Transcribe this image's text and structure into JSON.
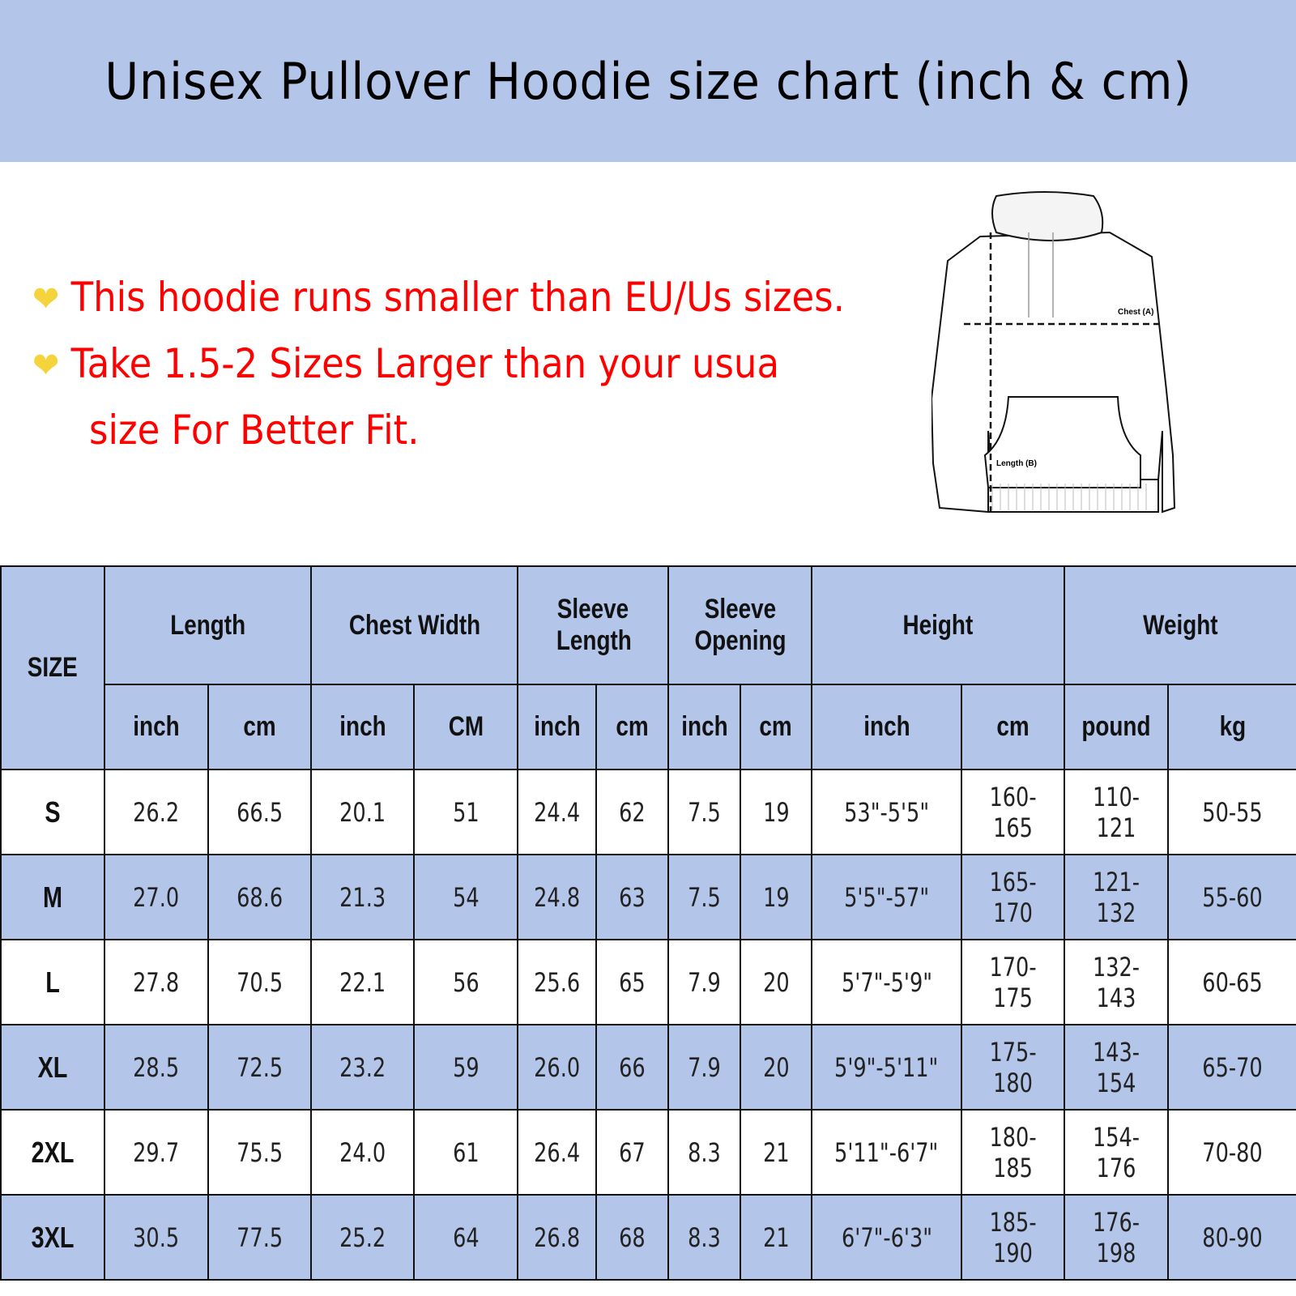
{
  "title": "Unisex Pullover Hoodie size chart (inch & cm)",
  "notes": [
    {
      "icon": "yellow-heart-icon",
      "text": "This hoodie runs smaller than EU/Us sizes."
    },
    {
      "icon": "yellow-heart-icon",
      "text": "Take 1.5-2 Sizes Larger than your usua",
      "continuation": "size For Better Fit."
    }
  ],
  "diagram": {
    "chest_label": "Chest (A)",
    "length_label": "Length (B)"
  },
  "colors": {
    "banner": "#b4c5ea",
    "note_text": "#ff0000",
    "heart": "#f5d33a"
  },
  "table": {
    "size_header": "SIZE",
    "groups": [
      "Length",
      "Chest Width",
      "Sleeve Length",
      "Sleeve Opening",
      "Height",
      "Weight"
    ],
    "units": [
      "inch",
      "cm",
      "inch",
      "CM",
      "inch",
      "cm",
      "inch",
      "cm",
      "inch",
      "cm",
      "pound",
      "kg"
    ],
    "rows": [
      {
        "size": "S",
        "values": [
          "26.2",
          "66.5",
          "20.1",
          "51",
          "24.4",
          "62",
          "7.5",
          "19",
          "53\"-5'5\"",
          "160-165",
          "110-121",
          "50-55"
        ]
      },
      {
        "size": "M",
        "values": [
          "27.0",
          "68.6",
          "21.3",
          "54",
          "24.8",
          "63",
          "7.5",
          "19",
          "5'5\"-57\"",
          "165-170",
          "121-132",
          "55-60"
        ]
      },
      {
        "size": "L",
        "values": [
          "27.8",
          "70.5",
          "22.1",
          "56",
          "25.6",
          "65",
          "7.9",
          "20",
          "5'7\"-5'9\"",
          "170-175",
          "132-143",
          "60-65"
        ]
      },
      {
        "size": "XL",
        "values": [
          "28.5",
          "72.5",
          "23.2",
          "59",
          "26.0",
          "66",
          "7.9",
          "20",
          "5'9\"-5'11\"",
          "175-180",
          "143-154",
          "65-70"
        ]
      },
      {
        "size": "2XL",
        "values": [
          "29.7",
          "75.5",
          "24.0",
          "61",
          "26.4",
          "67",
          "8.3",
          "21",
          "5'11\"-6'7\"",
          "180-185",
          "154-176",
          "70-80"
        ]
      },
      {
        "size": "3XL",
        "values": [
          "30.5",
          "77.5",
          "25.2",
          "64",
          "26.8",
          "68",
          "8.3",
          "21",
          "6'7\"-6'3\"",
          "185-190",
          "176-198",
          "80-90"
        ]
      }
    ]
  }
}
